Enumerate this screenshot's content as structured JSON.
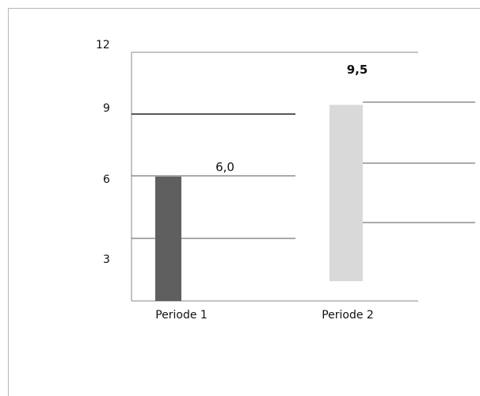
{
  "chart_data": {
    "type": "bar",
    "title": "",
    "xlabel": "",
    "ylabel": "",
    "categories": [
      "Periode 1",
      "Periode 2"
    ],
    "series": [
      {
        "values": [
          6.0,
          9.5
        ],
        "colors": [
          "#5f5f5f",
          "#d9d9d9"
        ],
        "labels": [
          "6,0",
          "9,5"
        ]
      }
    ],
    "yticks": [
      "3",
      "6",
      "9",
      "12"
    ],
    "ylim": [
      0,
      12
    ],
    "grid": true,
    "legend": "none"
  }
}
